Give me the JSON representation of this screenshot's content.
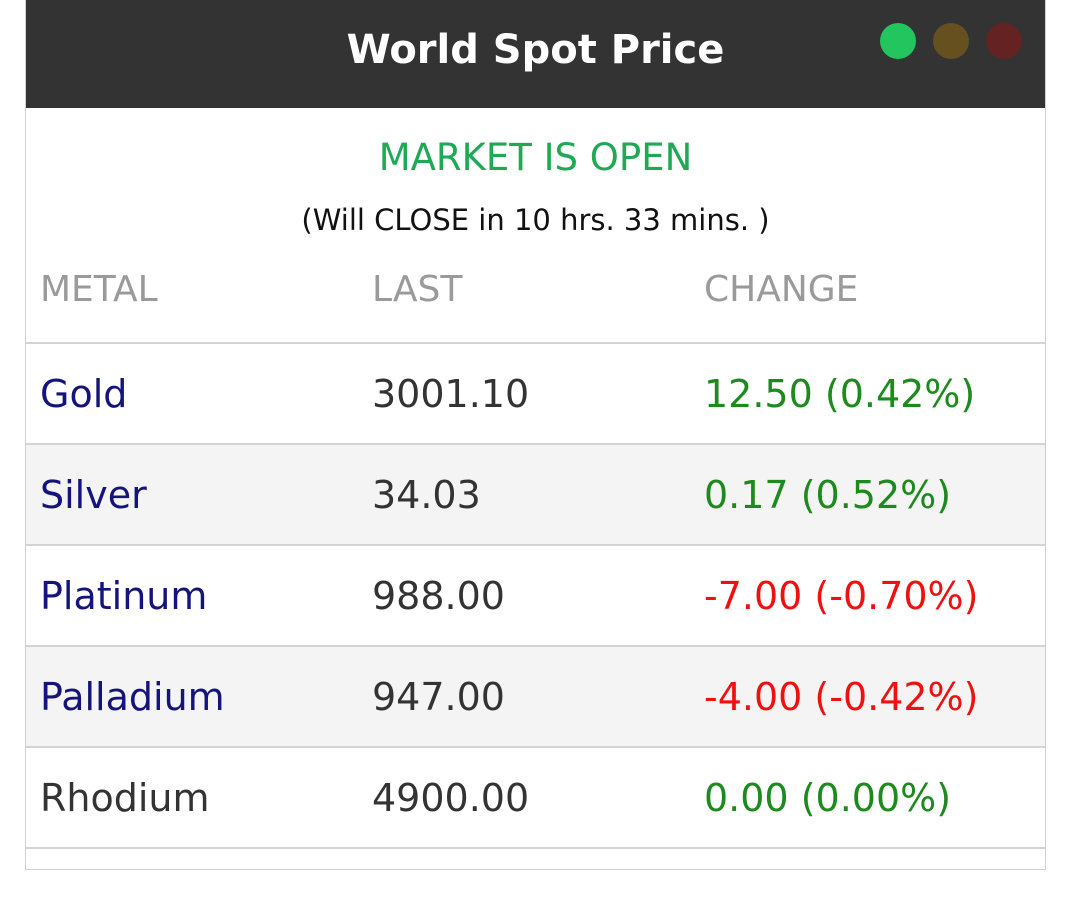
{
  "header": {
    "title": "World Spot Price"
  },
  "status": "MARKET IS OPEN",
  "countdown": "(Will CLOSE in 10 hrs. 33 mins. )",
  "table": {
    "columns": [
      "METAL",
      "LAST",
      "CHANGE"
    ],
    "rows": [
      [
        "Gold",
        "3001.10",
        "12.50 (0.42%)"
      ],
      [
        "Silver",
        "34.03",
        "0.17 (0.52%)"
      ],
      [
        "Platinum",
        "988.00",
        "-7.00 (-0.70%)"
      ],
      [
        "Palladium",
        "947.00",
        "-4.00 (-0.42%)"
      ],
      [
        "Rhodium",
        "4900.00",
        "0.00 (0.00%)"
      ]
    ]
  }
}
